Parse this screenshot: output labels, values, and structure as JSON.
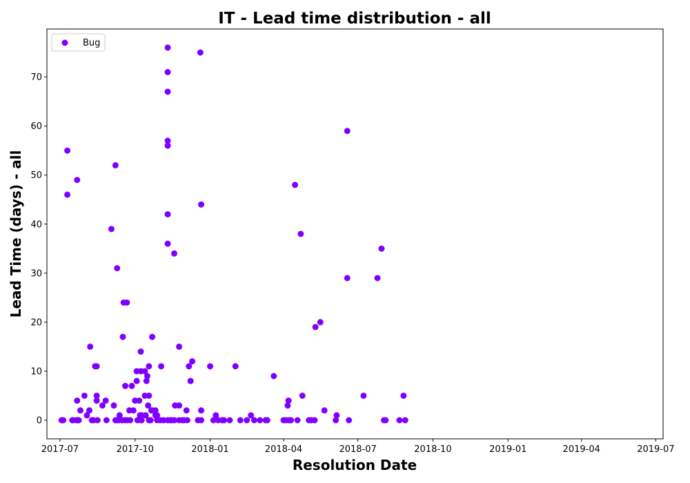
{
  "chart_data": {
    "type": "scatter",
    "title": "IT - Lead time distribution - all",
    "xlabel": "Resolution Date",
    "ylabel": "Lead Time (days) - all",
    "xlim": [
      "2017-06-15",
      "2019-07-10"
    ],
    "ylim": [
      -3.8,
      79.8
    ],
    "x_ticks": [
      {
        "date": "2017-07-01",
        "label": "2017-07"
      },
      {
        "date": "2017-10-01",
        "label": "2017-10"
      },
      {
        "date": "2018-01-01",
        "label": "2018-01"
      },
      {
        "date": "2018-04-01",
        "label": "2018-04"
      },
      {
        "date": "2018-07-01",
        "label": "2018-07"
      },
      {
        "date": "2018-10-01",
        "label": "2018-10"
      },
      {
        "date": "2019-01-01",
        "label": "2019-01"
      },
      {
        "date": "2019-04-01",
        "label": "2019-04"
      },
      {
        "date": "2019-07-01",
        "label": "2019-07"
      }
    ],
    "y_ticks": [
      0,
      10,
      20,
      30,
      40,
      50,
      60,
      70
    ],
    "grid": false,
    "legend_position": "top-left",
    "series": [
      {
        "name": "Bug",
        "color": "#8000ff",
        "points": [
          [
            "2017-07-03",
            0
          ],
          [
            "2017-07-05",
            0
          ],
          [
            "2017-07-10",
            55
          ],
          [
            "2017-07-10",
            46
          ],
          [
            "2017-07-16",
            0
          ],
          [
            "2017-07-17",
            0
          ],
          [
            "2017-07-21",
            0
          ],
          [
            "2017-07-22",
            49
          ],
          [
            "2017-07-22",
            4
          ],
          [
            "2017-07-23",
            0
          ],
          [
            "2017-07-24",
            0
          ],
          [
            "2017-07-26",
            2
          ],
          [
            "2017-07-31",
            5
          ],
          [
            "2017-08-03",
            1
          ],
          [
            "2017-08-06",
            2
          ],
          [
            "2017-08-07",
            15
          ],
          [
            "2017-08-09",
            0
          ],
          [
            "2017-08-11",
            0
          ],
          [
            "2017-08-13",
            11
          ],
          [
            "2017-08-15",
            11
          ],
          [
            "2017-08-15",
            5
          ],
          [
            "2017-08-15",
            4
          ],
          [
            "2017-08-16",
            0
          ],
          [
            "2017-08-22",
            3
          ],
          [
            "2017-08-26",
            4
          ],
          [
            "2017-08-27",
            0
          ],
          [
            "2017-09-02",
            39
          ],
          [
            "2017-09-05",
            3
          ],
          [
            "2017-09-07",
            52
          ],
          [
            "2017-09-07",
            0
          ],
          [
            "2017-09-09",
            31
          ],
          [
            "2017-09-09",
            0
          ],
          [
            "2017-09-11",
            0
          ],
          [
            "2017-09-12",
            1
          ],
          [
            "2017-09-15",
            0
          ],
          [
            "2017-09-16",
            17
          ],
          [
            "2017-09-17",
            24
          ],
          [
            "2017-09-18",
            0
          ],
          [
            "2017-09-19",
            7
          ],
          [
            "2017-09-21",
            24
          ],
          [
            "2017-09-21",
            0
          ],
          [
            "2017-09-24",
            2
          ],
          [
            "2017-09-25",
            0
          ],
          [
            "2017-09-27",
            7
          ],
          [
            "2017-09-29",
            2
          ],
          [
            "2017-10-01",
            4
          ],
          [
            "2017-10-03",
            8
          ],
          [
            "2017-10-03",
            10
          ],
          [
            "2017-10-04",
            0
          ],
          [
            "2017-10-06",
            4
          ],
          [
            "2017-10-07",
            1
          ],
          [
            "2017-10-08",
            14
          ],
          [
            "2017-10-08",
            10
          ],
          [
            "2017-10-08",
            0
          ],
          [
            "2017-10-09",
            1
          ],
          [
            "2017-10-09",
            0
          ],
          [
            "2017-10-13",
            10
          ],
          [
            "2017-10-13",
            5
          ],
          [
            "2017-10-14",
            1
          ],
          [
            "2017-10-15",
            8
          ],
          [
            "2017-10-16",
            9
          ],
          [
            "2017-10-17",
            3
          ],
          [
            "2017-10-18",
            11
          ],
          [
            "2017-10-18",
            5
          ],
          [
            "2017-10-18",
            0
          ],
          [
            "2017-10-20",
            0
          ],
          [
            "2017-10-21",
            2
          ],
          [
            "2017-10-22",
            2
          ],
          [
            "2017-10-22",
            17
          ],
          [
            "2017-10-26",
            2
          ],
          [
            "2017-10-26",
            1
          ],
          [
            "2017-10-28",
            1
          ],
          [
            "2017-10-28",
            0
          ],
          [
            "2017-11-01",
            0
          ],
          [
            "2017-11-02",
            11
          ],
          [
            "2017-11-05",
            0
          ],
          [
            "2017-11-10",
            76
          ],
          [
            "2017-11-10",
            71
          ],
          [
            "2017-11-10",
            67
          ],
          [
            "2017-11-10",
            57
          ],
          [
            "2017-11-10",
            56
          ],
          [
            "2017-11-10",
            42
          ],
          [
            "2017-11-10",
            36
          ],
          [
            "2017-11-10",
            0
          ],
          [
            "2017-11-13",
            0
          ],
          [
            "2017-11-15",
            0
          ],
          [
            "2017-11-18",
            34
          ],
          [
            "2017-11-18",
            0
          ],
          [
            "2017-11-19",
            3
          ],
          [
            "2017-11-24",
            15
          ],
          [
            "2017-11-24",
            3
          ],
          [
            "2017-11-24",
            0
          ],
          [
            "2017-11-28",
            0
          ],
          [
            "2017-11-30",
            0
          ],
          [
            "2017-12-03",
            2
          ],
          [
            "2017-12-04",
            0
          ],
          [
            "2017-12-06",
            11
          ],
          [
            "2017-12-08",
            8
          ],
          [
            "2017-12-10",
            12
          ],
          [
            "2017-12-17",
            0
          ],
          [
            "2017-12-20",
            75
          ],
          [
            "2017-12-21",
            44
          ],
          [
            "2017-12-21",
            2
          ],
          [
            "2017-12-21",
            0
          ],
          [
            "2018-01-01",
            11
          ],
          [
            "2018-01-05",
            0
          ],
          [
            "2018-01-08",
            1
          ],
          [
            "2018-01-11",
            0
          ],
          [
            "2018-01-16",
            0
          ],
          [
            "2018-01-18",
            0
          ],
          [
            "2018-01-25",
            0
          ],
          [
            "2018-02-01",
            11
          ],
          [
            "2018-02-07",
            0
          ],
          [
            "2018-02-15",
            0
          ],
          [
            "2018-02-20",
            1
          ],
          [
            "2018-02-24",
            0
          ],
          [
            "2018-03-03",
            0
          ],
          [
            "2018-03-10",
            0
          ],
          [
            "2018-03-12",
            0
          ],
          [
            "2018-03-20",
            9
          ],
          [
            "2018-04-01",
            0
          ],
          [
            "2018-04-04",
            0
          ],
          [
            "2018-04-06",
            3
          ],
          [
            "2018-04-07",
            4
          ],
          [
            "2018-04-08",
            0
          ],
          [
            "2018-04-10",
            0
          ],
          [
            "2018-04-15",
            48
          ],
          [
            "2018-04-18",
            0
          ],
          [
            "2018-04-22",
            38
          ],
          [
            "2018-04-24",
            5
          ],
          [
            "2018-05-02",
            0
          ],
          [
            "2018-05-05",
            0
          ],
          [
            "2018-05-09",
            0
          ],
          [
            "2018-05-10",
            19
          ],
          [
            "2018-05-16",
            20
          ],
          [
            "2018-05-21",
            2
          ],
          [
            "2018-06-04",
            0
          ],
          [
            "2018-06-05",
            1
          ],
          [
            "2018-06-18",
            59
          ],
          [
            "2018-06-18",
            29
          ],
          [
            "2018-06-20",
            0
          ],
          [
            "2018-07-08",
            5
          ],
          [
            "2018-07-25",
            29
          ],
          [
            "2018-07-30",
            35
          ],
          [
            "2018-08-02",
            0
          ],
          [
            "2018-08-04",
            0
          ],
          [
            "2018-08-21",
            0
          ],
          [
            "2018-08-26",
            5
          ],
          [
            "2018-08-28",
            0
          ]
        ]
      }
    ]
  }
}
